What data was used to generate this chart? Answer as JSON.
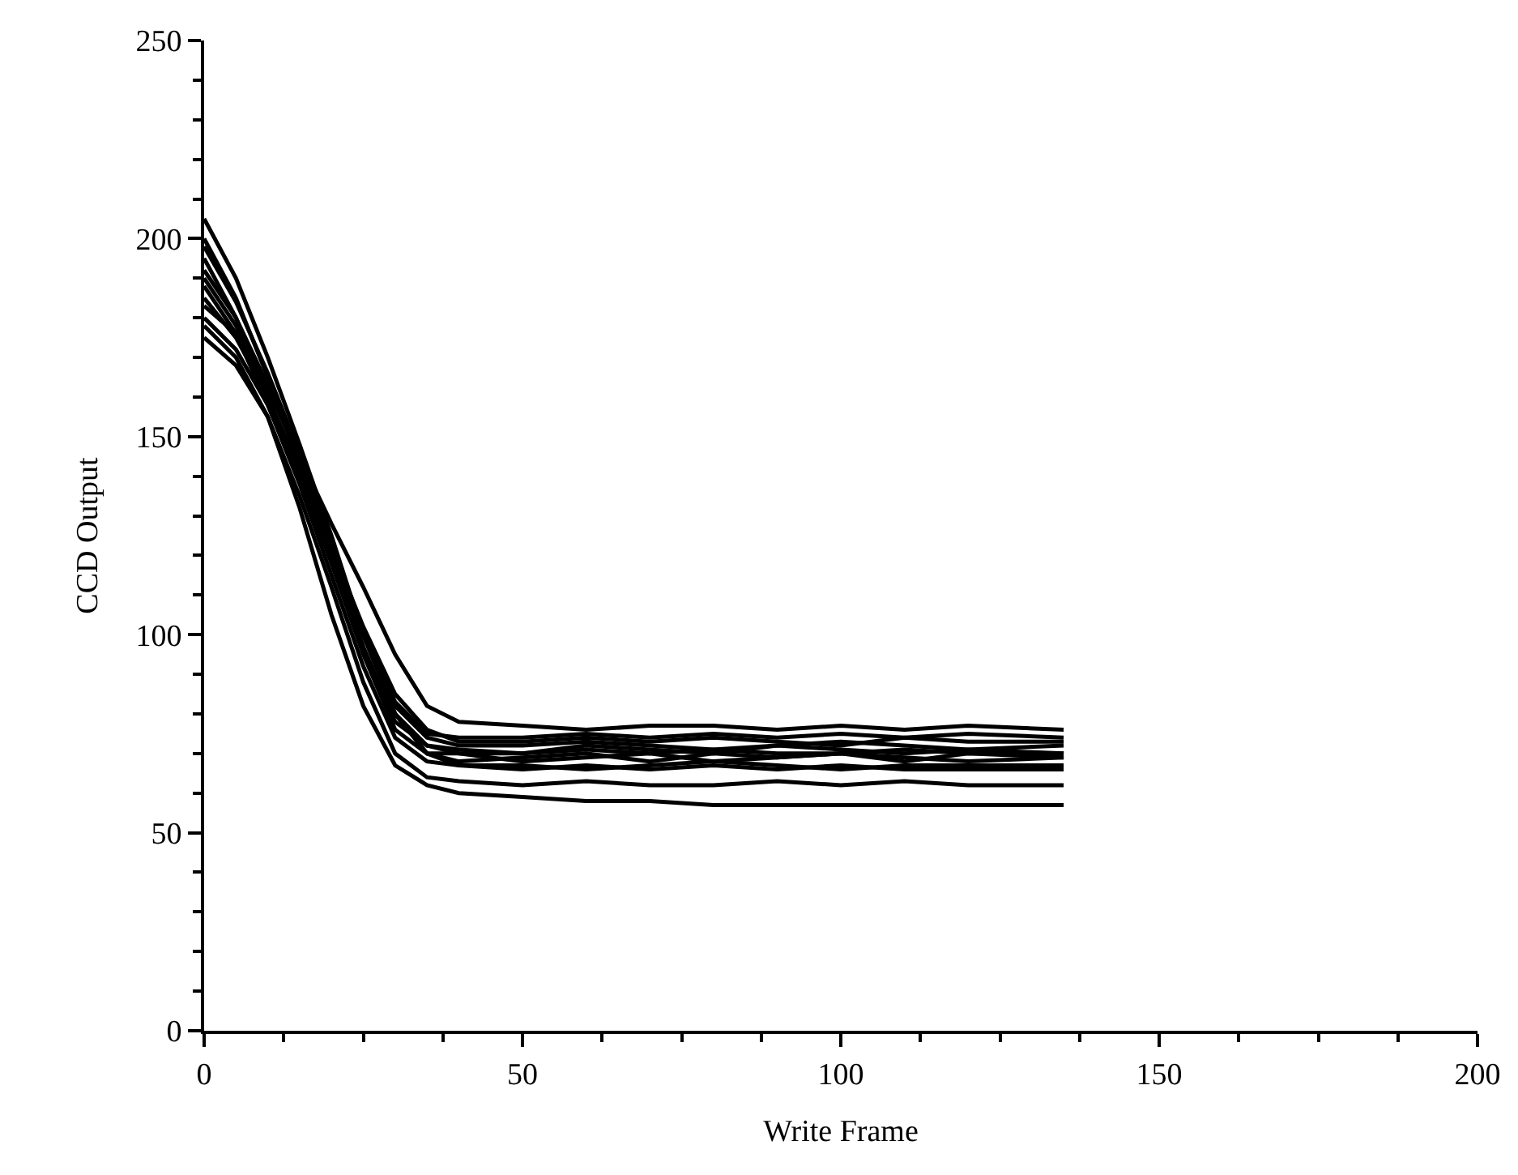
{
  "chart_data": {
    "type": "line",
    "xlabel": "Write Frame",
    "ylabel": "CCD Output",
    "xlim": [
      0,
      200
    ],
    "ylim": [
      0,
      250
    ],
    "xticks": [
      0,
      50,
      100,
      150,
      200
    ],
    "yticks": [
      0,
      50,
      100,
      150,
      200,
      250
    ],
    "grid": false,
    "marker": "none",
    "line_style": "solid",
    "x": [
      0,
      5,
      10,
      15,
      20,
      25,
      30,
      35,
      40,
      50,
      60,
      70,
      80,
      90,
      100,
      110,
      120,
      135
    ],
    "series": [
      {
        "color": "#000000",
        "values": [
          205,
          190,
          170,
          148,
          125,
          100,
          80,
          70,
          68,
          69,
          70,
          68,
          70,
          69,
          70,
          68,
          70,
          69
        ]
      },
      {
        "color": "#000000",
        "values": [
          200,
          185,
          165,
          143,
          120,
          97,
          78,
          72,
          71,
          70,
          72,
          71,
          70,
          72,
          71,
          70,
          71,
          70
        ]
      },
      {
        "color": "#000000",
        "values": [
          195,
          180,
          160,
          140,
          118,
          95,
          76,
          70,
          70,
          68,
          69,
          70,
          68,
          69,
          70,
          69,
          68,
          69
        ]
      },
      {
        "color": "#000000",
        "values": [
          190,
          178,
          160,
          140,
          120,
          100,
          82,
          74,
          72,
          72,
          73,
          72,
          71,
          72,
          73,
          72,
          71,
          72
        ]
      },
      {
        "color": "#000000",
        "values": [
          185,
          175,
          160,
          142,
          122,
          102,
          85,
          76,
          73,
          73,
          74,
          73,
          74,
          73,
          72,
          74,
          73,
          73
        ]
      },
      {
        "color": "#000000",
        "values": [
          180,
          172,
          158,
          140,
          120,
          100,
          80,
          70,
          67,
          66,
          67,
          66,
          67,
          66,
          67,
          66,
          66,
          66
        ]
      },
      {
        "color": "#000000",
        "values": [
          175,
          168,
          155,
          135,
          112,
          88,
          70,
          64,
          63,
          62,
          63,
          62,
          62,
          63,
          62,
          63,
          62,
          62
        ]
      },
      {
        "color": "#000000",
        "values": [
          183,
          176,
          162,
          145,
          128,
          112,
          95,
          82,
          78,
          77,
          76,
          77,
          77,
          76,
          77,
          76,
          77,
          76
        ]
      },
      {
        "color": "#000000",
        "values": [
          178,
          170,
          155,
          132,
          105,
          82,
          67,
          62,
          60,
          59,
          58,
          58,
          57,
          57,
          57,
          57,
          57,
          57
        ]
      },
      {
        "color": "#000000",
        "values": [
          198,
          184,
          166,
          146,
          124,
          100,
          80,
          72,
          70,
          70,
          71,
          70,
          71,
          70,
          70,
          71,
          70,
          70
        ]
      },
      {
        "color": "#000000",
        "values": [
          188,
          176,
          158,
          138,
          115,
          92,
          74,
          68,
          67,
          67,
          66,
          67,
          68,
          67,
          66,
          67,
          67,
          67
        ]
      },
      {
        "color": "#000000",
        "values": [
          192,
          180,
          163,
          144,
          123,
          101,
          83,
          75,
          74,
          74,
          75,
          74,
          75,
          74,
          75,
          74,
          75,
          74
        ]
      }
    ]
  }
}
